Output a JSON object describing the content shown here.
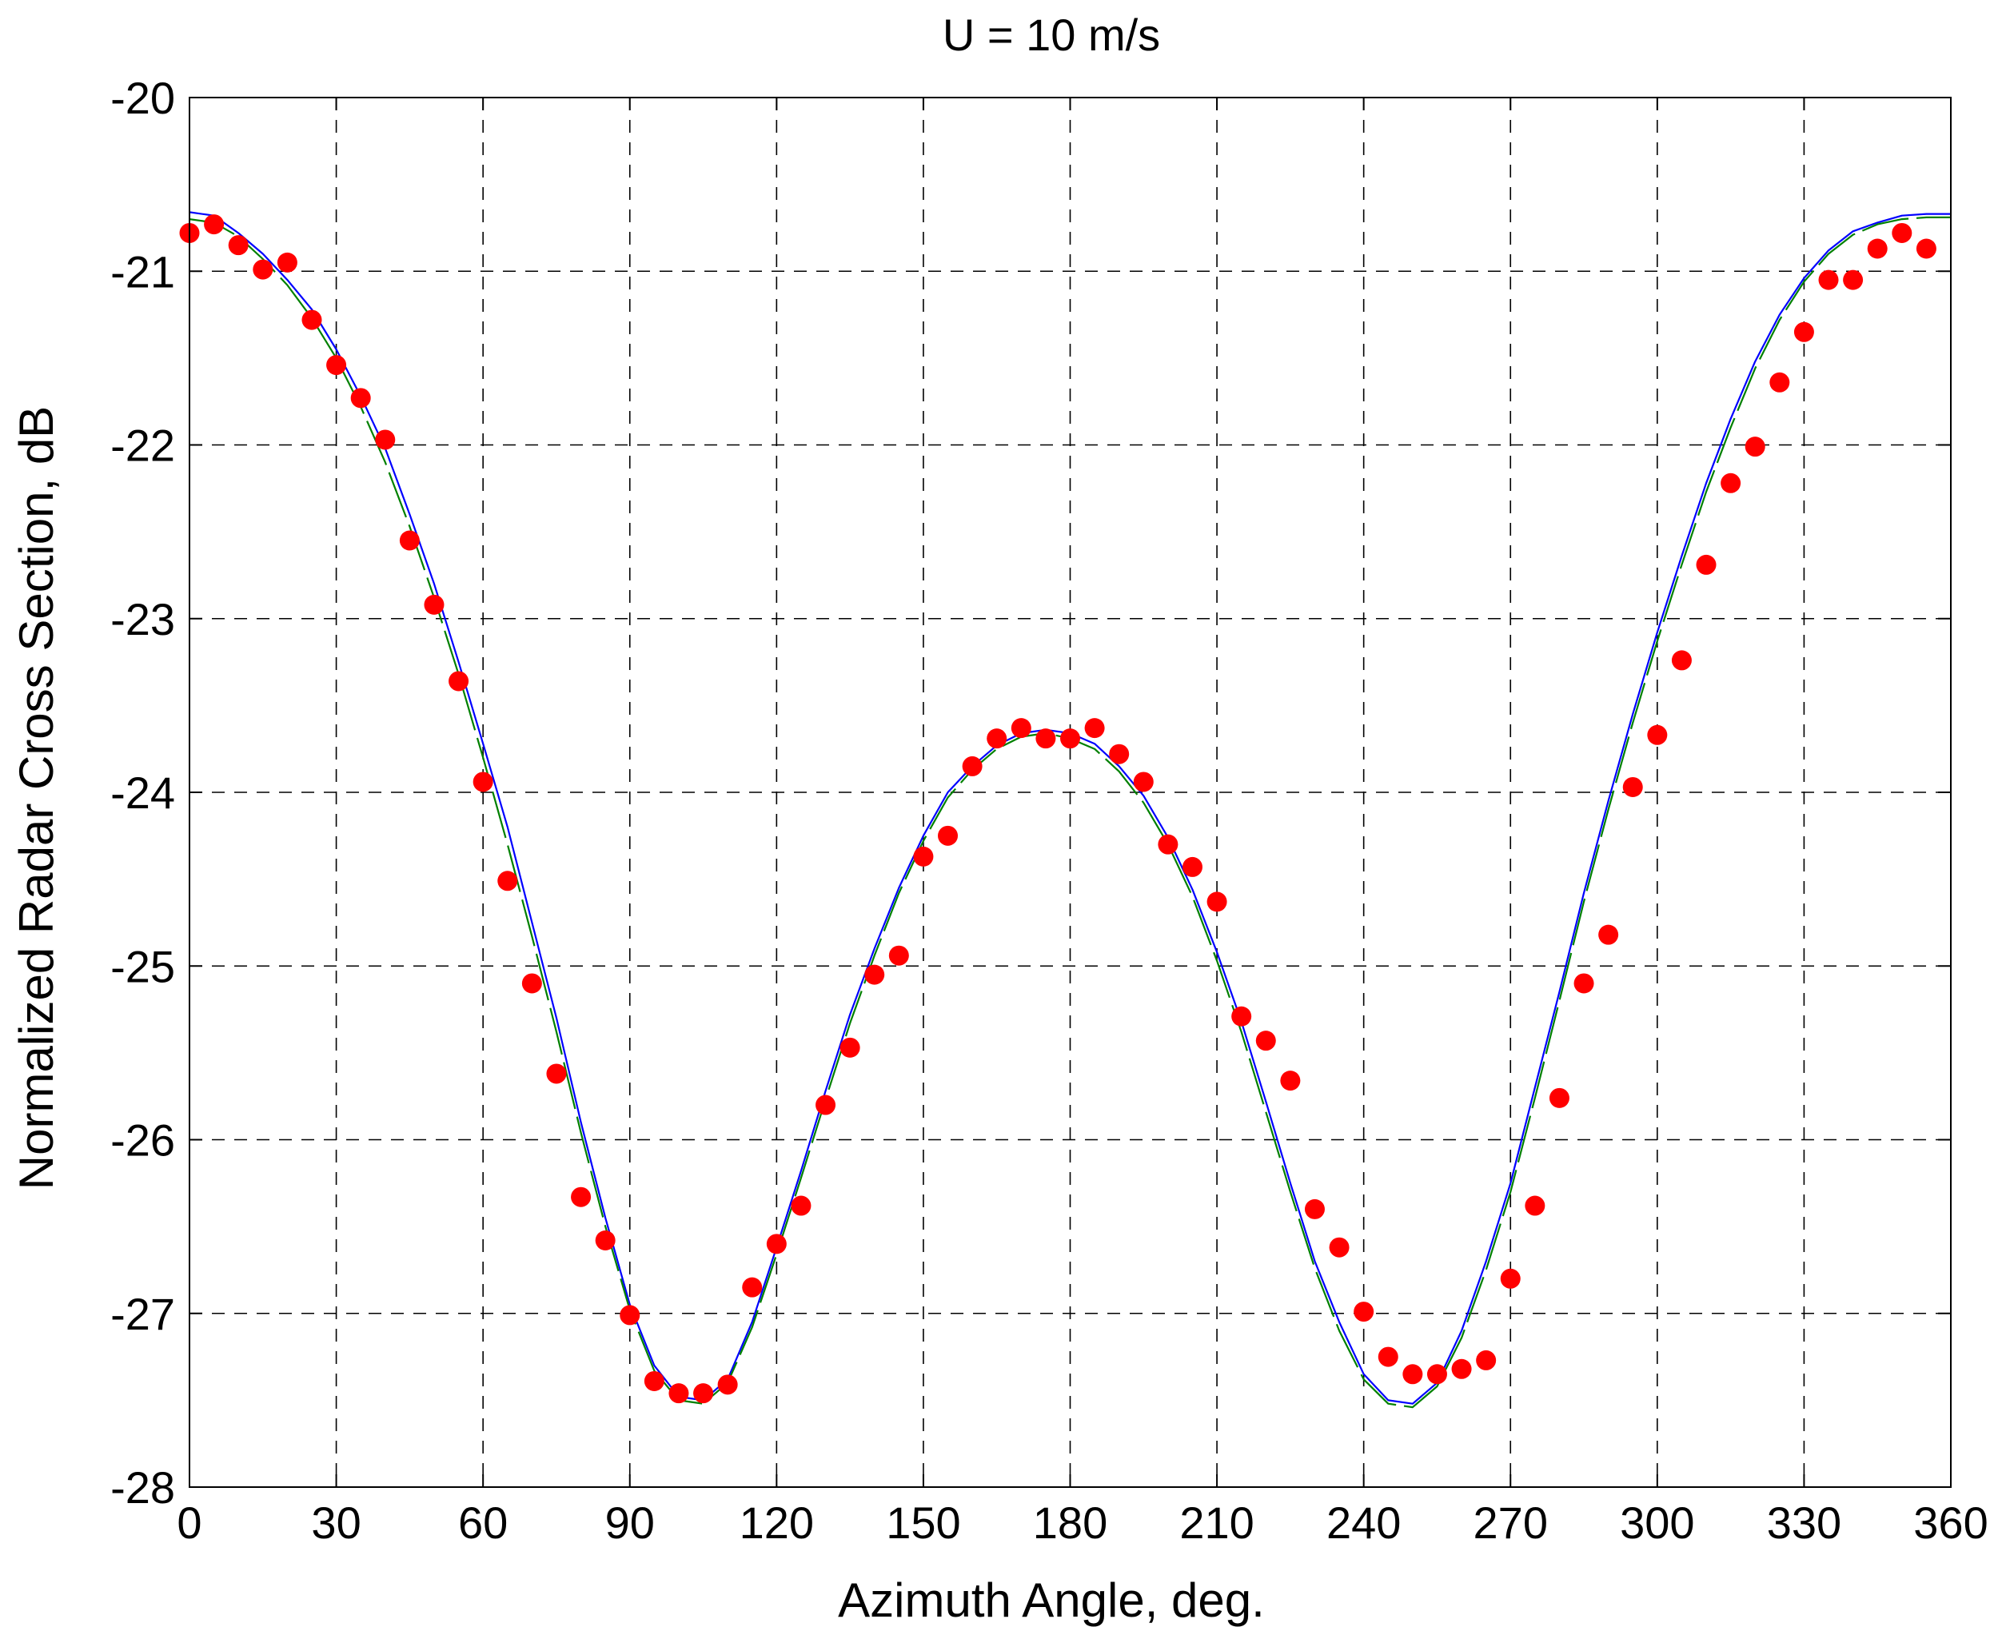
{
  "chart_data": {
    "type": "line",
    "title": "U = 10 m/s",
    "xlabel": "Azimuth Angle, deg.",
    "ylabel": "Normalized Radar Cross Section, dB",
    "xlim": [
      0,
      360
    ],
    "ylim": [
      -28,
      -20
    ],
    "xticks": [
      0,
      30,
      60,
      90,
      120,
      150,
      180,
      210,
      240,
      270,
      300,
      330,
      360
    ],
    "yticks": [
      -20,
      -21,
      -22,
      -23,
      -24,
      -25,
      -26,
      -27,
      -28
    ],
    "grid": true,
    "legend": "none",
    "colors": {
      "measured": "#ff0000",
      "model_blue": "#0000ff",
      "model_green": "#008000",
      "grid": "#000000"
    },
    "series": [
      {
        "type": "scatter",
        "color": "#ff0000",
        "x": [
          0,
          5,
          10,
          15,
          20,
          25,
          30,
          35,
          40,
          45,
          50,
          55,
          60,
          65,
          70,
          75,
          80,
          85,
          90,
          95,
          100,
          105,
          110,
          115,
          120,
          125,
          130,
          135,
          140,
          145,
          150,
          155,
          160,
          165,
          170,
          175,
          180,
          185,
          190,
          195,
          200,
          205,
          210,
          215,
          220,
          225,
          230,
          235,
          240,
          245,
          250,
          255,
          260,
          265,
          270,
          275,
          280,
          285,
          290,
          295,
          300,
          305,
          310,
          315,
          320,
          325,
          330,
          335,
          340,
          345,
          350,
          355
        ],
        "y": [
          -20.78,
          -20.73,
          -20.85,
          -20.99,
          -20.95,
          -21.28,
          -21.54,
          -21.73,
          -21.97,
          -22.55,
          -22.92,
          -23.36,
          -23.94,
          -24.51,
          -25.1,
          -25.62,
          -26.33,
          -26.58,
          -27.01,
          -27.39,
          -27.46,
          -27.46,
          -27.41,
          -26.85,
          -26.6,
          -26.38,
          -25.8,
          -25.47,
          -25.05,
          -24.94,
          -24.37,
          -24.25,
          -23.85,
          -23.69,
          -23.63,
          -23.69,
          -23.69,
          -23.63,
          -23.78,
          -23.94,
          -24.3,
          -24.43,
          -24.63,
          -25.29,
          -25.43,
          -25.66,
          -26.4,
          -26.62,
          -26.99,
          -27.25,
          -27.35,
          -27.35,
          -27.32,
          -27.27,
          -26.8,
          -26.38,
          -25.76,
          -25.1,
          -24.82,
          -23.97,
          -23.67,
          -23.24,
          -22.69,
          -22.22,
          -22.01,
          -21.64,
          -21.35,
          -21.05,
          -21.05,
          -20.87,
          -20.78,
          -20.87
        ]
      },
      {
        "type": "line",
        "color": "#0000ff",
        "x": [
          0,
          5,
          10,
          15,
          20,
          25,
          30,
          35,
          40,
          45,
          50,
          55,
          60,
          65,
          70,
          75,
          80,
          85,
          90,
          95,
          100,
          105,
          110,
          115,
          120,
          125,
          130,
          135,
          140,
          145,
          150,
          155,
          160,
          165,
          170,
          175,
          180,
          185,
          190,
          195,
          200,
          205,
          210,
          215,
          220,
          225,
          230,
          235,
          240,
          245,
          250,
          255,
          260,
          265,
          270,
          275,
          280,
          285,
          290,
          295,
          300,
          305,
          310,
          315,
          320,
          325,
          330,
          335,
          340,
          345,
          350,
          355,
          360
        ],
        "y": [
          -20.66,
          -20.68,
          -20.78,
          -20.9,
          -21.05,
          -21.22,
          -21.45,
          -21.72,
          -22.02,
          -22.4,
          -22.8,
          -23.25,
          -23.72,
          -24.2,
          -24.75,
          -25.3,
          -25.9,
          -26.45,
          -26.95,
          -27.3,
          -27.48,
          -27.5,
          -27.38,
          -27.05,
          -26.62,
          -26.18,
          -25.72,
          -25.28,
          -24.9,
          -24.55,
          -24.25,
          -24.0,
          -23.85,
          -23.73,
          -23.66,
          -23.64,
          -23.66,
          -23.72,
          -23.85,
          -24.02,
          -24.26,
          -24.56,
          -24.92,
          -25.32,
          -25.78,
          -26.25,
          -26.7,
          -27.05,
          -27.35,
          -27.5,
          -27.52,
          -27.4,
          -27.1,
          -26.7,
          -26.25,
          -25.7,
          -25.15,
          -24.58,
          -24.05,
          -23.55,
          -23.08,
          -22.64,
          -22.22,
          -21.85,
          -21.52,
          -21.25,
          -21.04,
          -20.88,
          -20.77,
          -20.72,
          -20.68,
          -20.67,
          -20.67
        ]
      },
      {
        "type": "line",
        "style": "dashed",
        "color": "#008000",
        "x": [
          0,
          5,
          10,
          15,
          20,
          25,
          30,
          35,
          40,
          45,
          50,
          55,
          60,
          65,
          70,
          75,
          80,
          85,
          90,
          95,
          100,
          105,
          110,
          115,
          120,
          125,
          130,
          135,
          140,
          145,
          150,
          155,
          160,
          165,
          170,
          175,
          180,
          185,
          190,
          195,
          200,
          205,
          210,
          215,
          220,
          225,
          230,
          235,
          240,
          245,
          250,
          255,
          260,
          265,
          270,
          275,
          280,
          285,
          290,
          295,
          300,
          305,
          310,
          315,
          320,
          325,
          330,
          335,
          340,
          345,
          350,
          355,
          360
        ],
        "y": [
          -20.7,
          -20.72,
          -20.8,
          -20.93,
          -21.08,
          -21.27,
          -21.5,
          -21.78,
          -22.1,
          -22.47,
          -22.88,
          -23.32,
          -23.8,
          -24.3,
          -24.83,
          -25.38,
          -25.96,
          -26.5,
          -26.98,
          -27.33,
          -27.5,
          -27.52,
          -27.4,
          -27.08,
          -26.66,
          -26.22,
          -25.77,
          -25.33,
          -24.94,
          -24.58,
          -24.28,
          -24.03,
          -23.87,
          -23.75,
          -23.68,
          -23.66,
          -23.69,
          -23.75,
          -23.88,
          -24.06,
          -24.3,
          -24.6,
          -24.97,
          -25.38,
          -25.84,
          -26.3,
          -26.74,
          -27.1,
          -27.38,
          -27.52,
          -27.54,
          -27.42,
          -27.14,
          -26.75,
          -26.3,
          -25.76,
          -25.2,
          -24.63,
          -24.1,
          -23.6,
          -23.13,
          -22.69,
          -22.27,
          -21.9,
          -21.56,
          -21.28,
          -21.06,
          -20.9,
          -20.79,
          -20.73,
          -20.7,
          -20.69,
          -20.69
        ]
      }
    ]
  }
}
